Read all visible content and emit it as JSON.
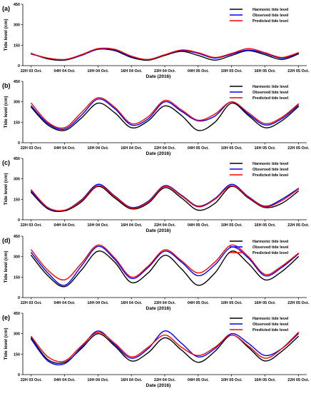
{
  "figure": {
    "colors": {
      "harmonic": "#000000",
      "observed": "#0000ff",
      "predicted": "#ff0000",
      "axis": "#000000"
    }
  },
  "chart_data": [
    {
      "type": "line",
      "panel_label": "(a)",
      "xlabel": "Date (2016)",
      "ylabel": "Tide level (cm)",
      "x_unit": "hours from 22H 03 Oct.",
      "xlim": [
        -1.5,
        49.5
      ],
      "ylim": [
        0,
        450
      ],
      "yticks": [
        0,
        150,
        300,
        450
      ],
      "xticks": [
        0,
        6,
        12,
        18,
        24,
        30,
        36,
        42,
        48
      ],
      "xtick_labels": [
        "22H 03 Oct.",
        "04H 04 Oct.",
        "10H 04 Oct.",
        "16H 04 Oct.",
        "22H 04 Oct.",
        "04H 05 Oct.",
        "10H 05 Oct.",
        "16H 05 Oct.",
        "22H 05 Oct."
      ],
      "legend": "top-right",
      "x": [
        0,
        3,
        6,
        9,
        12,
        15,
        18,
        21,
        24,
        27,
        30,
        33,
        36,
        39,
        42,
        45,
        48
      ],
      "series": [
        {
          "name": "Harmonic tide level",
          "color": "#000000",
          "values": [
            90,
            50,
            40,
            75,
            120,
            110,
            60,
            40,
            75,
            105,
            75,
            40,
            75,
            110,
            80,
            45,
            85
          ]
        },
        {
          "name": "Observed tide level",
          "color": "#0000ff",
          "values": [
            85,
            55,
            45,
            75,
            120,
            115,
            65,
            45,
            80,
            110,
            90,
            55,
            85,
            115,
            90,
            55,
            90
          ]
        },
        {
          "name": "Predicted tide level",
          "color": "#ff0000",
          "values": [
            88,
            55,
            45,
            80,
            125,
            120,
            70,
            45,
            80,
            115,
            95,
            60,
            90,
            125,
            95,
            60,
            95
          ]
        }
      ]
    },
    {
      "type": "line",
      "panel_label": "(b)",
      "xlabel": "Date (2016)",
      "ylabel": "Tide level (cm)",
      "x_unit": "hours from 22H 03 Oct.",
      "xlim": [
        -1.5,
        49.5
      ],
      "ylim": [
        0,
        450
      ],
      "yticks": [
        0,
        150,
        300,
        450
      ],
      "xticks": [
        0,
        6,
        12,
        18,
        24,
        30,
        36,
        42,
        48
      ],
      "xtick_labels": [
        "22H 03 Oct.",
        "04H 04 Oct.",
        "10H 04 Oct.",
        "16H 04 Oct.",
        "22H 04 Oct.",
        "04H 05 Oct.",
        "10H 05 Oct.",
        "16H 05 Oct.",
        "22H 05 Oct."
      ],
      "legend": "top-right",
      "x": [
        0,
        3,
        6,
        9,
        12,
        15,
        18,
        21,
        24,
        27,
        30,
        33,
        36,
        39,
        42,
        45,
        48
      ],
      "series": [
        {
          "name": "Harmonic tide level",
          "color": "#000000",
          "values": [
            260,
            130,
            90,
            180,
            290,
            220,
            110,
            160,
            270,
            200,
            90,
            150,
            290,
            200,
            110,
            160,
            265
          ]
        },
        {
          "name": "Observed tide level",
          "color": "#0000ff",
          "values": [
            270,
            140,
            100,
            200,
            320,
            250,
            130,
            175,
            300,
            230,
            160,
            195,
            300,
            210,
            130,
            175,
            275
          ]
        },
        {
          "name": "Predicted tide level",
          "color": "#ff0000",
          "values": [
            290,
            150,
            110,
            220,
            330,
            260,
            140,
            190,
            310,
            240,
            165,
            210,
            300,
            220,
            140,
            185,
            285
          ]
        }
      ]
    },
    {
      "type": "line",
      "panel_label": "(c)",
      "xlabel": "Date (2016)",
      "ylabel": "Tide level (cm)",
      "x_unit": "hours from 22H 03 Oct.",
      "xlim": [
        -1.5,
        49.5
      ],
      "ylim": [
        0,
        450
      ],
      "yticks": [
        0,
        150,
        300,
        450
      ],
      "xticks": [
        0,
        6,
        12,
        18,
        24,
        30,
        36,
        42,
        48
      ],
      "xtick_labels": [
        "22H 03 Oct.",
        "04H 04 Oct.",
        "10H 04 Oct.",
        "16H 04 Oct.",
        "22H 04 Oct.",
        "04H 05 Oct.",
        "10H 05 Oct.",
        "16H 05 Oct.",
        "22H 05 Oct."
      ],
      "legend": "top-right",
      "x": [
        0,
        3,
        6,
        9,
        12,
        15,
        18,
        21,
        24,
        27,
        30,
        33,
        36,
        39,
        42,
        45,
        48
      ],
      "series": [
        {
          "name": "Harmonic tide level",
          "color": "#000000",
          "values": [
            200,
            80,
            65,
            130,
            245,
            160,
            80,
            120,
            235,
            160,
            70,
            120,
            245,
            160,
            90,
            120,
            210
          ]
        },
        {
          "name": "Observed tide level",
          "color": "#0000ff",
          "values": [
            210,
            85,
            70,
            145,
            260,
            175,
            90,
            135,
            250,
            180,
            100,
            155,
            260,
            170,
            100,
            150,
            230
          ]
        },
        {
          "name": "Predicted tide level",
          "color": "#ff0000",
          "values": [
            220,
            90,
            70,
            140,
            250,
            170,
            85,
            130,
            245,
            175,
            95,
            150,
            250,
            165,
            95,
            140,
            225
          ]
        }
      ]
    },
    {
      "type": "line",
      "panel_label": "(d)",
      "xlabel": "Date (2016)",
      "ylabel": "Tide level (cm)",
      "x_unit": "hours from 22H 03 Oct.",
      "xlim": [
        -1.5,
        49.5
      ],
      "ylim": [
        0,
        450
      ],
      "yticks": [
        0,
        150,
        300,
        450
      ],
      "xticks": [
        0,
        6,
        12,
        18,
        24,
        30,
        36,
        42,
        48
      ],
      "xtick_labels": [
        "22H 03 Oct.",
        "04H 04 Oct.",
        "10H 04 Oct.",
        "16H 04 Oct.",
        "22H 04 Oct.",
        "04H 05 Oct.",
        "10H 05 Oct.",
        "16H 05 Oct.",
        "22H 05 Oct."
      ],
      "legend": "top-right",
      "x": [
        0,
        3,
        6,
        9,
        12,
        15,
        18,
        21,
        24,
        27,
        30,
        33,
        36,
        39,
        42,
        45,
        48
      ],
      "series": [
        {
          "name": "Harmonic tide level",
          "color": "#000000",
          "values": [
            310,
            160,
            80,
            200,
            340,
            260,
            110,
            180,
            310,
            210,
            90,
            180,
            340,
            250,
            130,
            190,
            300
          ]
        },
        {
          "name": "Observed tide level",
          "color": "#0000ff",
          "values": [
            330,
            180,
            90,
            230,
            375,
            280,
            140,
            220,
            340,
            260,
            160,
            240,
            370,
            290,
            160,
            220,
            320
          ]
        },
        {
          "name": "Predicted tide level",
          "color": "#ff0000",
          "values": [
            350,
            200,
            130,
            250,
            385,
            290,
            150,
            230,
            350,
            270,
            180,
            260,
            385,
            300,
            170,
            230,
            325
          ]
        }
      ]
    },
    {
      "type": "line",
      "panel_label": "(e)",
      "xlabel": "Date (2016)",
      "ylabel": "Tide level (cm)",
      "x_unit": "hours from 22H 03 Oct.",
      "xlim": [
        -1.5,
        49.5
      ],
      "ylim": [
        0,
        450
      ],
      "yticks": [
        0,
        150,
        300,
        450
      ],
      "xticks": [
        0,
        6,
        12,
        18,
        24,
        30,
        36,
        42,
        48
      ],
      "xtick_labels": [
        "22H 03 Oct.",
        "04H 04 Oct.",
        "10H 04 Oct.",
        "16H 04 Oct.",
        "22H 04 Oct.",
        "04H 05 Oct.",
        "10H 05 Oct.",
        "16H 05 Oct.",
        "22H 05 Oct."
      ],
      "legend": "top-right",
      "x": [
        0,
        3,
        6,
        9,
        12,
        15,
        18,
        21,
        24,
        27,
        30,
        33,
        36,
        39,
        42,
        45,
        48
      ],
      "series": [
        {
          "name": "Harmonic tide level",
          "color": "#000000",
          "values": [
            270,
            110,
            90,
            190,
            300,
            210,
            100,
            160,
            270,
            180,
            90,
            170,
            290,
            200,
            100,
            170,
            280
          ]
        },
        {
          "name": "Observed tide level",
          "color": "#0000ff",
          "values": [
            260,
            100,
            80,
            200,
            320,
            220,
            120,
            190,
            320,
            230,
            130,
            190,
            300,
            230,
            140,
            190,
            300
          ]
        },
        {
          "name": "Predicted tide level",
          "color": "#ff0000",
          "values": [
            280,
            130,
            100,
            210,
            310,
            230,
            130,
            200,
            290,
            200,
            140,
            200,
            290,
            210,
            120,
            190,
            310
          ]
        }
      ]
    }
  ]
}
